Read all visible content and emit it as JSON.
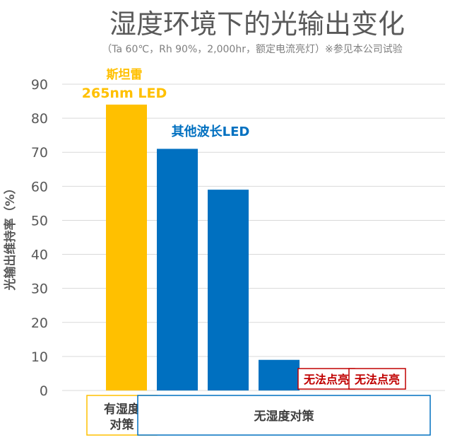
{
  "chart_data": {
    "type": "bar",
    "title": "湿度环境下的光输出变化",
    "subtitle": "（Ta 60℃，Rh 90%，2,000hr，额定电流亮灯）※参见本公司试验",
    "ylabel": "光输出维持率（%）",
    "ylim": [
      0,
      90
    ],
    "yticks": [
      0,
      10,
      20,
      30,
      40,
      50,
      60,
      70,
      80,
      90
    ],
    "grid": true,
    "colors": {
      "stanley": "#FFC000",
      "other": "#0070C0",
      "failed": "#C00000",
      "grid": "#d9d9d9",
      "text": "#595959"
    },
    "bars": [
      {
        "value": 84,
        "group": "stanley"
      },
      {
        "value": 71,
        "group": "other"
      },
      {
        "value": 59,
        "group": "other"
      },
      {
        "value": 9,
        "group": "other"
      },
      {
        "value": 0,
        "group": "failed",
        "label": "无法点亮"
      },
      {
        "value": 0,
        "group": "failed",
        "label": "无法点亮"
      }
    ],
    "annotations": {
      "stanley_name": "斯坦雷",
      "stanley_product": "265nm LED",
      "other_label": "其他波长LED"
    },
    "categories": [
      {
        "label": "有湿度\n对策",
        "color": "#FFC000",
        "from": 0,
        "to": 0
      },
      {
        "label": "无湿度对策",
        "color": "#0070C0",
        "from": 1,
        "to": 5
      }
    ]
  }
}
